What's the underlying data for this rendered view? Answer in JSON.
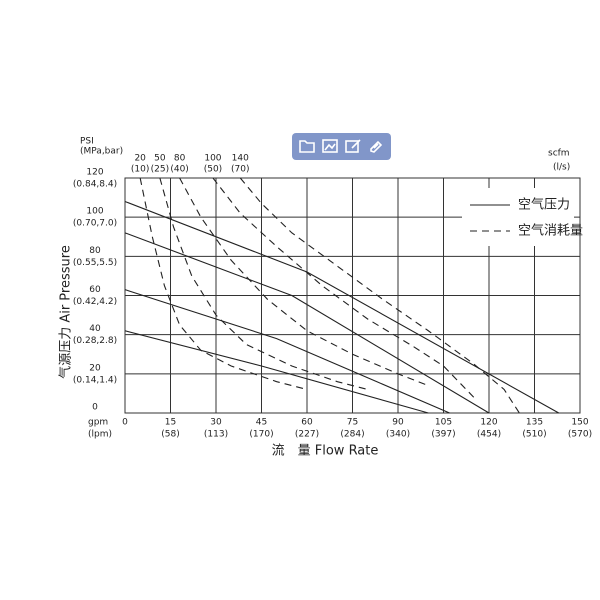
{
  "chart_data": {
    "type": "line",
    "y_title": "气源压力 Air Pressure",
    "x_title": "流　量  Flow Rate",
    "y_unit": "PSI",
    "y_unit_sub": "(MPa,bar)",
    "x_unit": "gpm",
    "x_unit_sub": "(lpm)",
    "top_unit": "scfm",
    "top_unit_sub": "(l/s)",
    "xlim": [
      0,
      150
    ],
    "ylim": [
      0,
      120
    ],
    "xticks": [
      0,
      15,
      30,
      45,
      60,
      75,
      90,
      105,
      120,
      135,
      150
    ],
    "xtick_sublabels": [
      null,
      "(58)",
      "(113)",
      "(170)",
      "(227)",
      "(284)",
      "(340)",
      "(397)",
      "(454)",
      "(510)",
      "(570)"
    ],
    "yticks": [
      0,
      20,
      40,
      60,
      80,
      100,
      120
    ],
    "ytick_sublabels": [
      null,
      "(0.14,1.4)",
      "(0.28,2.8)",
      "(0.42,4.2)",
      "(0.55,5.5)",
      "(0.70,7.0)",
      "(0.84,8.4)"
    ],
    "grid": true,
    "legend": [
      {
        "label": "空气压力",
        "dash": false
      },
      {
        "label": "空气消耗量",
        "dash": true
      }
    ],
    "series": [
      {
        "dash": false,
        "color": "#222222",
        "x": [
          0,
          60,
          143
        ],
        "values": [
          108,
          72,
          0
        ]
      },
      {
        "dash": false,
        "color": "#222222",
        "x": [
          0,
          55,
          120
        ],
        "values": [
          92,
          60,
          0
        ]
      },
      {
        "dash": false,
        "color": "#222222",
        "x": [
          0,
          50,
          107
        ],
        "values": [
          63,
          38,
          0
        ]
      },
      {
        "dash": false,
        "color": "#222222",
        "x": [
          0,
          45,
          100
        ],
        "values": [
          42,
          24,
          0
        ]
      },
      {
        "dash": true,
        "color": "#222222",
        "label": "20",
        "sublabel": "(10)",
        "x": [
          5,
          9,
          13,
          18,
          25,
          35,
          50,
          60
        ],
        "values": [
          120,
          90,
          65,
          45,
          32,
          24,
          16,
          12
        ]
      },
      {
        "dash": true,
        "color": "#222222",
        "label": "50",
        "sublabel": "(25)",
        "x": [
          11.5,
          16,
          22,
          30,
          40,
          55,
          70,
          80
        ],
        "values": [
          120,
          95,
          70,
          50,
          35,
          24,
          16,
          12
        ]
      },
      {
        "dash": true,
        "color": "#222222",
        "label": "80",
        "sublabel": "(40)",
        "x": [
          18,
          25,
          35,
          47,
          60,
          75,
          90,
          100
        ],
        "values": [
          120,
          100,
          78,
          58,
          42,
          30,
          20,
          14
        ]
      },
      {
        "dash": true,
        "color": "#222222",
        "label": "100",
        "sublabel": "(50)",
        "x": [
          29,
          38,
          50,
          65,
          80,
          95,
          105,
          115
        ],
        "values": [
          120,
          102,
          85,
          65,
          48,
          34,
          24,
          8
        ]
      },
      {
        "dash": true,
        "color": "#222222",
        "label": "140",
        "sublabel": "(70)",
        "x": [
          38,
          45,
          55,
          70,
          85,
          100,
          115,
          125,
          130
        ],
        "values": [
          120,
          107,
          92,
          75,
          58,
          42,
          25,
          12,
          0
        ]
      }
    ]
  }
}
